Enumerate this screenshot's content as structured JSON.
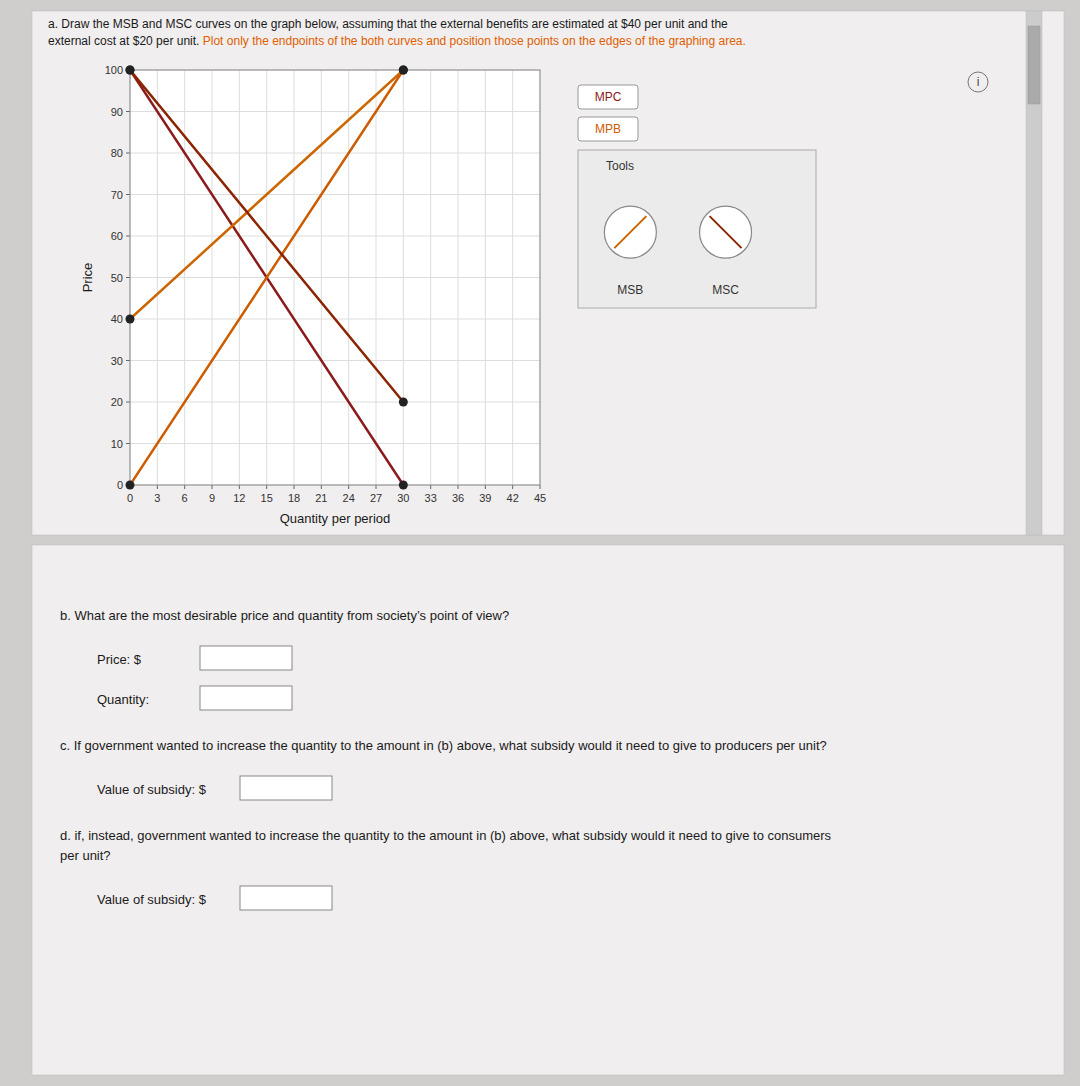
{
  "chart_data": {
    "type": "line",
    "title": "a. Draw the MSB and MSC curves on the graph below, assuming that the external benefits are estimated at $40 per unit and the",
    "subtitle": "external cost at $20 per unit. ",
    "highlight": "Plot only the endpoints of the both curves and position those points on the edges of the graphing area.",
    "highlight_color": "#e06000",
    "info_label": "i",
    "x_label": "Quantity per period",
    "y_label": "Price",
    "xlim": [
      0,
      45
    ],
    "ylim": [
      0,
      100
    ],
    "xticks": [
      0,
      3,
      6,
      9,
      12,
      15,
      18,
      21,
      24,
      27,
      30,
      33,
      36,
      39,
      42,
      45
    ],
    "yticks": [
      0,
      10,
      20,
      30,
      40,
      50,
      60,
      70,
      80,
      90,
      100
    ],
    "grid": true,
    "series": [
      {
        "name": "MPC",
        "color": "#8B1A1A",
        "marker": "circle",
        "x": [
          0,
          30
        ],
        "values": [
          100,
          0
        ]
      },
      {
        "name": "MPB",
        "color": "#CD5B00",
        "marker": "circle",
        "x": [
          0,
          30
        ],
        "values": [
          0,
          100
        ]
      },
      {
        "name": "MSB",
        "color": "#CC6600",
        "marker": "circle",
        "x": [
          0,
          30
        ],
        "values": [
          40,
          100
        ]
      },
      {
        "name": "MSC",
        "color": "#8B2500",
        "marker": "circle",
        "x": [
          0,
          30
        ],
        "values": [
          100,
          20
        ]
      }
    ],
    "tools_label": "Tools",
    "question_b": "b. What are the most desirable price and quantity from society’s point of view?",
    "price_label": "Price: $",
    "quantity_label": "Quantity:",
    "question_c": "c. If government wanted to increase the quantity to the amount in (b) above, what subsidy would it need to give to producers per unit?",
    "subsidy_label": "Value of subsidy: $",
    "question_d": [
      "d. if, instead, government wanted to increase the quantity to the amount in (b) above, what subsidy would it need to give to consumers",
      "per unit?"
    ]
  }
}
